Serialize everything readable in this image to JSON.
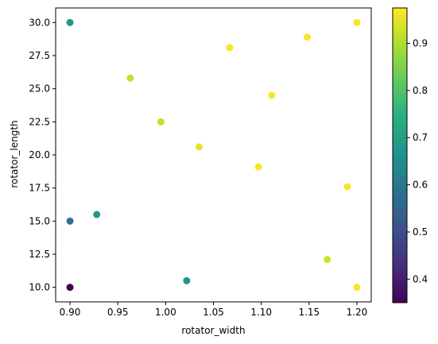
{
  "chart_data": {
    "type": "scatter",
    "title": "",
    "xlabel": "rotator_width",
    "ylabel": "rotator_length",
    "xlim": [
      0.885,
      1.215
    ],
    "ylim": [
      8.9,
      31.1
    ],
    "xticks": [
      0.9,
      0.95,
      1.0,
      1.05,
      1.1,
      1.15,
      1.2
    ],
    "xtick_labels": [
      "0.90",
      "0.95",
      "1.00",
      "1.05",
      "1.10",
      "1.15",
      "1.20"
    ],
    "yticks": [
      10.0,
      12.5,
      15.0,
      17.5,
      20.0,
      22.5,
      25.0,
      27.5,
      30.0
    ],
    "ytick_labels": [
      "10.0",
      "12.5",
      "15.0",
      "17.5",
      "20.0",
      "22.5",
      "25.0",
      "27.5",
      "30.0"
    ],
    "grid": false,
    "colormap": "viridis",
    "colorbar": {
      "range": [
        0.35,
        0.975
      ],
      "ticks": [
        0.4,
        0.5,
        0.6,
        0.7,
        0.8,
        0.9
      ],
      "tick_labels": [
        "0.4",
        "0.5",
        "0.6",
        "0.7",
        "0.8",
        "0.9"
      ]
    },
    "points": [
      {
        "x": 0.9,
        "y": 30.0,
        "c": 0.68
      },
      {
        "x": 0.9,
        "y": 15.0,
        "c": 0.58
      },
      {
        "x": 0.9,
        "y": 10.0,
        "c": 0.35
      },
      {
        "x": 0.928,
        "y": 15.5,
        "c": 0.68
      },
      {
        "x": 0.963,
        "y": 25.8,
        "c": 0.92
      },
      {
        "x": 0.995,
        "y": 22.5,
        "c": 0.92
      },
      {
        "x": 1.022,
        "y": 10.5,
        "c": 0.67
      },
      {
        "x": 1.035,
        "y": 20.6,
        "c": 0.95
      },
      {
        "x": 1.067,
        "y": 28.1,
        "c": 0.97
      },
      {
        "x": 1.097,
        "y": 19.1,
        "c": 0.97
      },
      {
        "x": 1.111,
        "y": 24.5,
        "c": 0.97
      },
      {
        "x": 1.148,
        "y": 28.9,
        "c": 0.97
      },
      {
        "x": 1.169,
        "y": 12.1,
        "c": 0.93
      },
      {
        "x": 1.19,
        "y": 17.6,
        "c": 0.97
      },
      {
        "x": 1.2,
        "y": 30.0,
        "c": 0.97
      },
      {
        "x": 1.2,
        "y": 10.0,
        "c": 0.97
      }
    ]
  }
}
